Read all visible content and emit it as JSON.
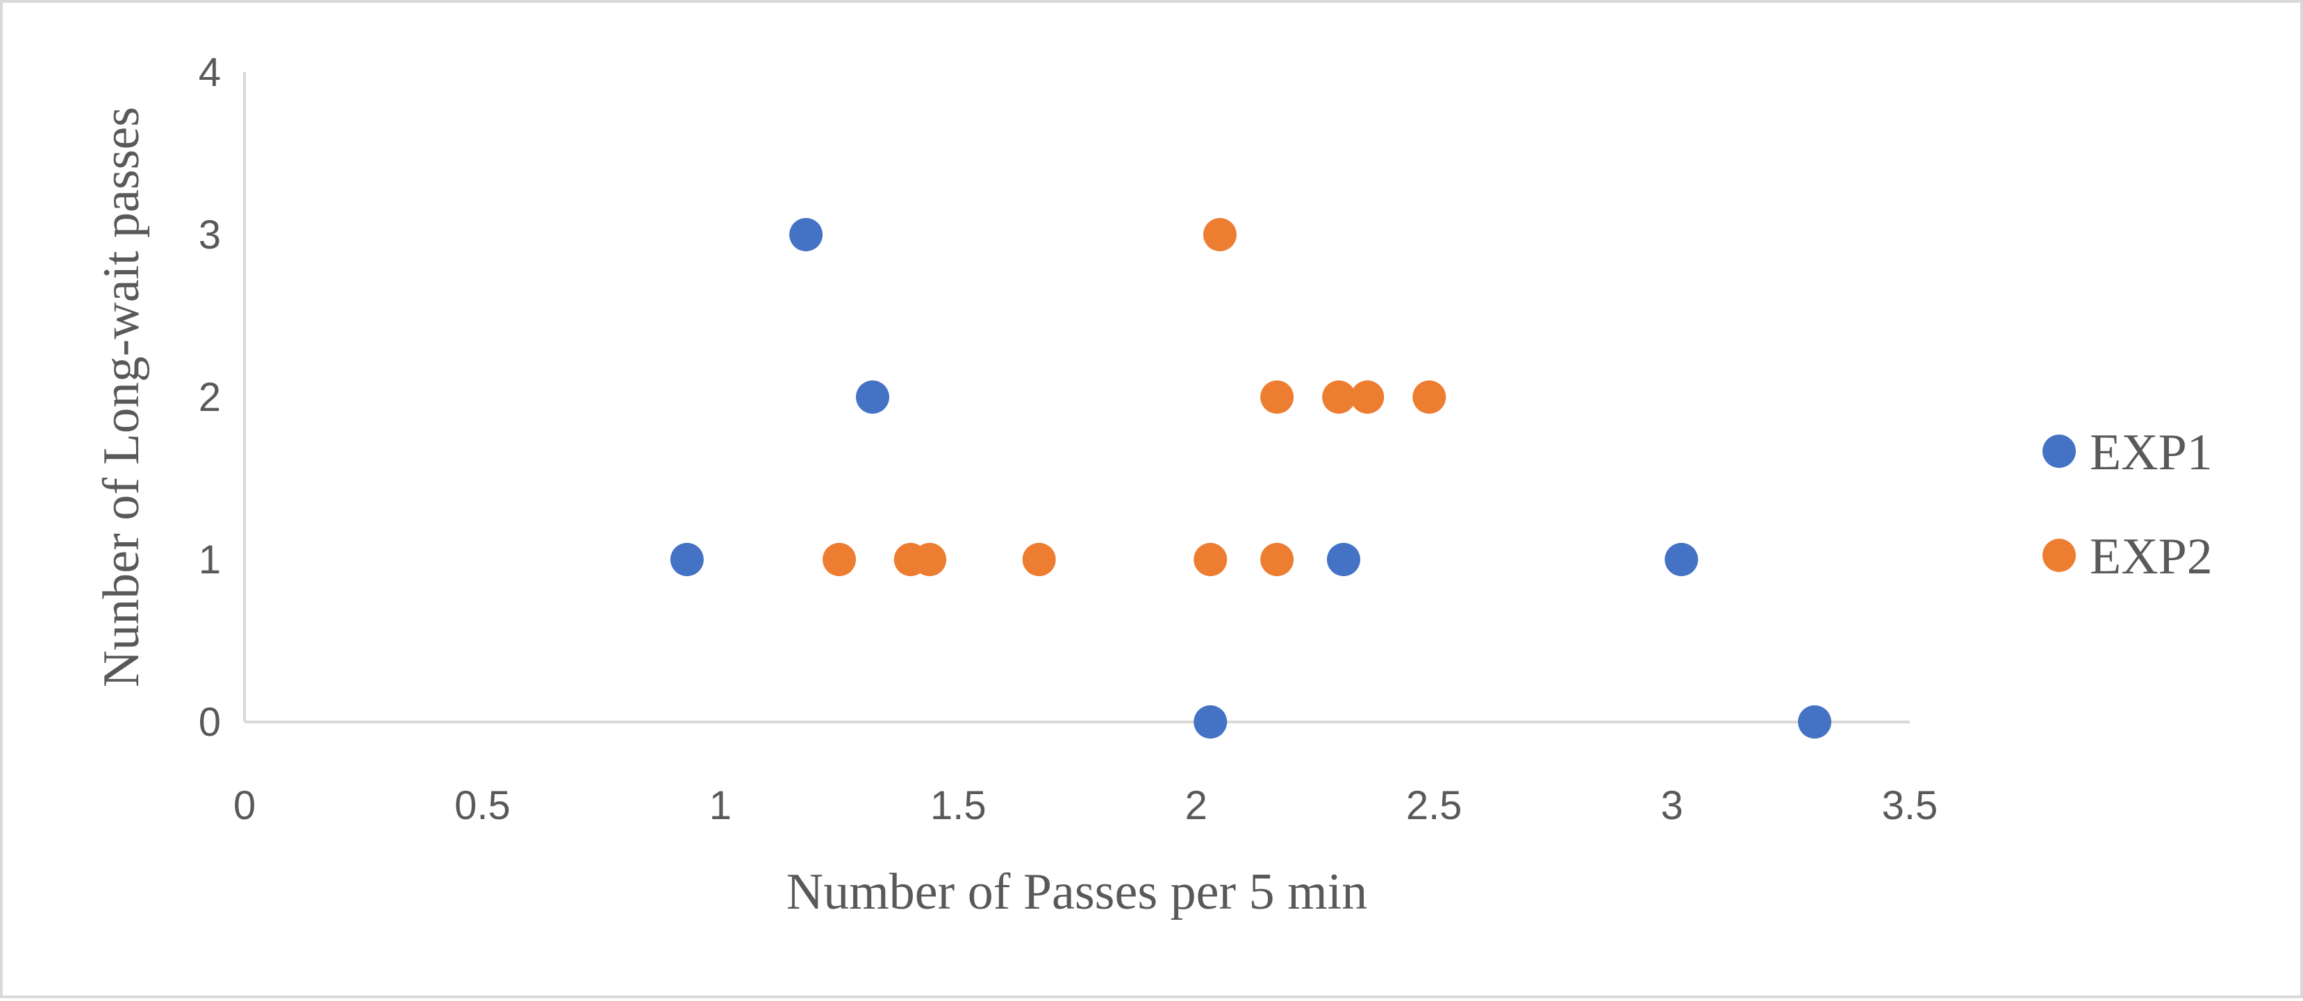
{
  "chart_data": {
    "type": "scatter",
    "title": "",
    "xlabel": "Number of Passes per 5 min",
    "ylabel": "Nunber of Long-wait passes",
    "xlim": [
      0,
      3.5
    ],
    "ylim": [
      0,
      4
    ],
    "xticks": [
      "0",
      "0.5",
      "1",
      "1.5",
      "2",
      "2.5",
      "3",
      "3.5"
    ],
    "yticks": [
      "0",
      "1",
      "2",
      "3",
      "4"
    ],
    "grid": false,
    "legend_position": "right",
    "series": [
      {
        "name": "EXP1",
        "color": "#4472C4",
        "points": [
          {
            "x": 0.93,
            "y": 1
          },
          {
            "x": 1.18,
            "y": 3
          },
          {
            "x": 1.32,
            "y": 2
          },
          {
            "x": 2.03,
            "y": 0
          },
          {
            "x": 2.31,
            "y": 1
          },
          {
            "x": 3.02,
            "y": 1
          },
          {
            "x": 3.3,
            "y": 0
          }
        ]
      },
      {
        "name": "EXP2",
        "color": "#ED7D31",
        "points": [
          {
            "x": 1.25,
            "y": 1
          },
          {
            "x": 1.4,
            "y": 1
          },
          {
            "x": 1.44,
            "y": 1
          },
          {
            "x": 1.67,
            "y": 1
          },
          {
            "x": 2.03,
            "y": 1
          },
          {
            "x": 2.05,
            "y": 3
          },
          {
            "x": 2.17,
            "y": 1
          },
          {
            "x": 2.17,
            "y": 2
          },
          {
            "x": 2.3,
            "y": 2
          },
          {
            "x": 2.36,
            "y": 2
          },
          {
            "x": 2.49,
            "y": 2
          }
        ]
      }
    ]
  }
}
